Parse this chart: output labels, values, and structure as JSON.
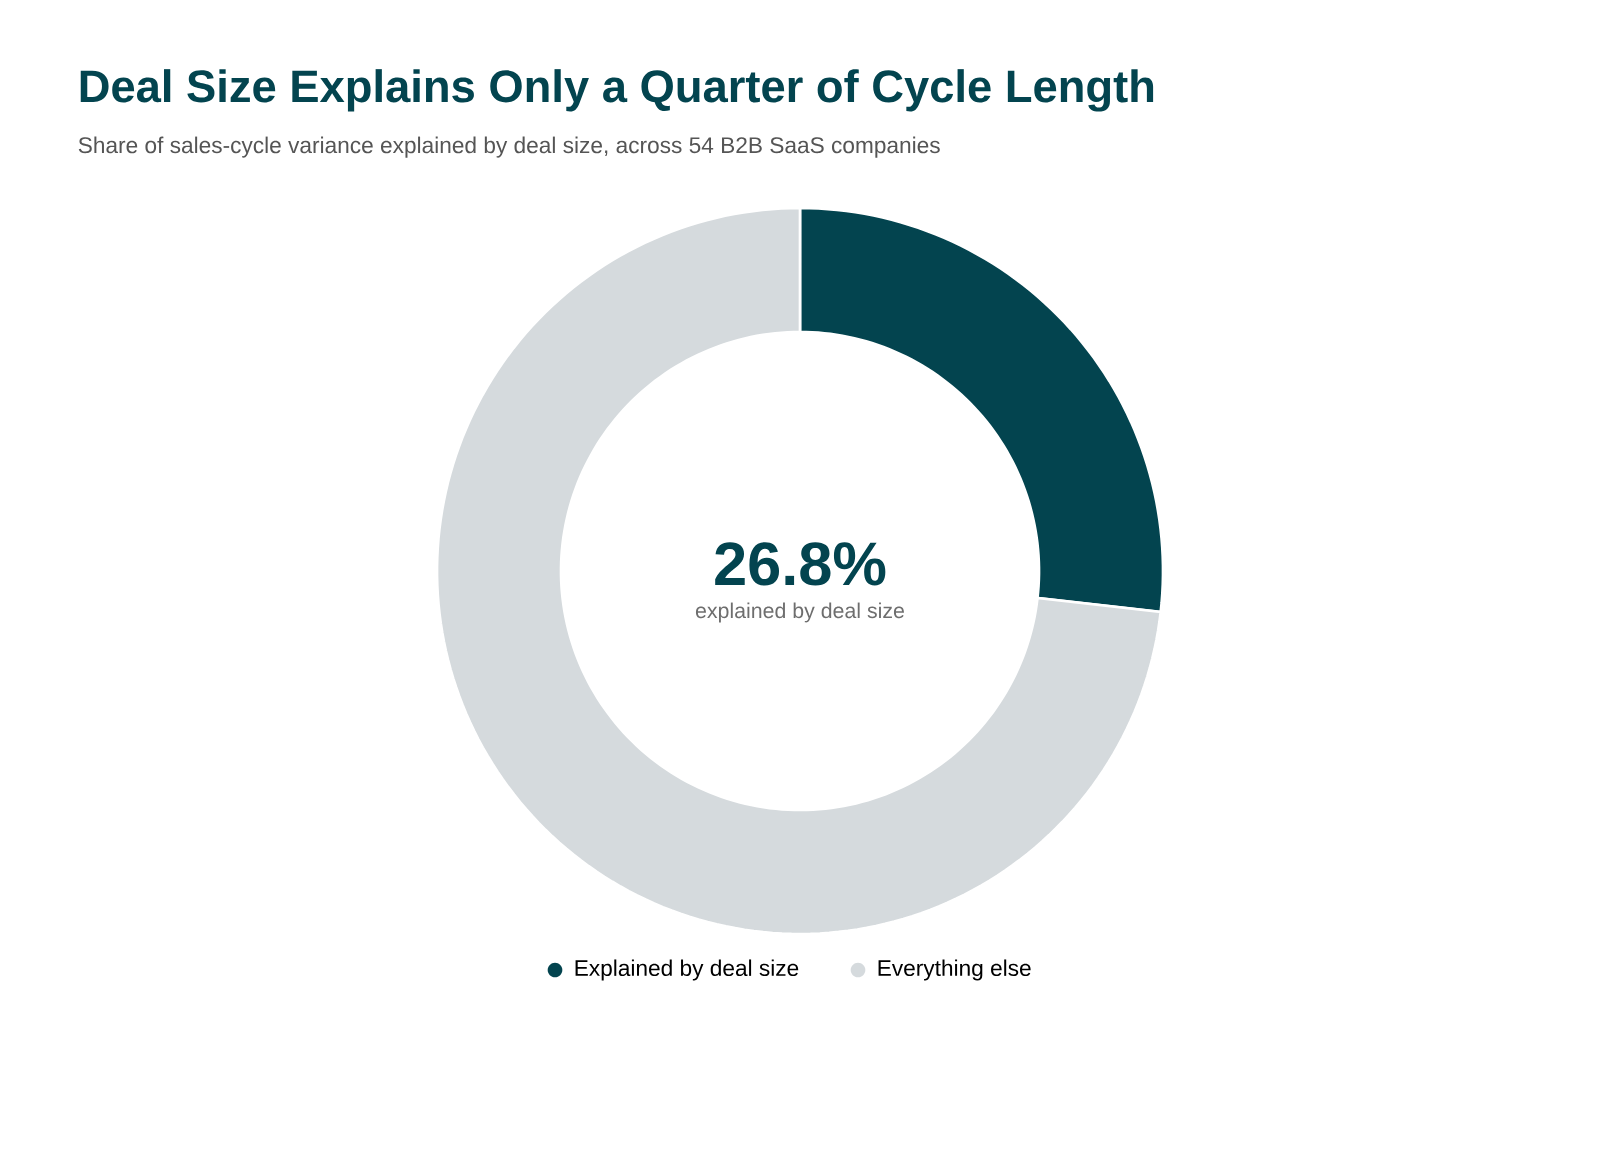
{
  "chart_data": {
    "type": "donut",
    "title": "Deal Size Explains Only a Quarter of Cycle Length",
    "subtitle": "Share of sales-cycle variance explained by deal size, across 54 B2B SaaS companies",
    "categories": [
      "Explained by deal size",
      "Everything else"
    ],
    "values": [
      26.8,
      73.2
    ],
    "colors": [
      "#03444f",
      "#d5dadd"
    ],
    "annotations": [
      "26.8%",
      "explained by deal size"
    ],
    "legend": "bottom"
  }
}
